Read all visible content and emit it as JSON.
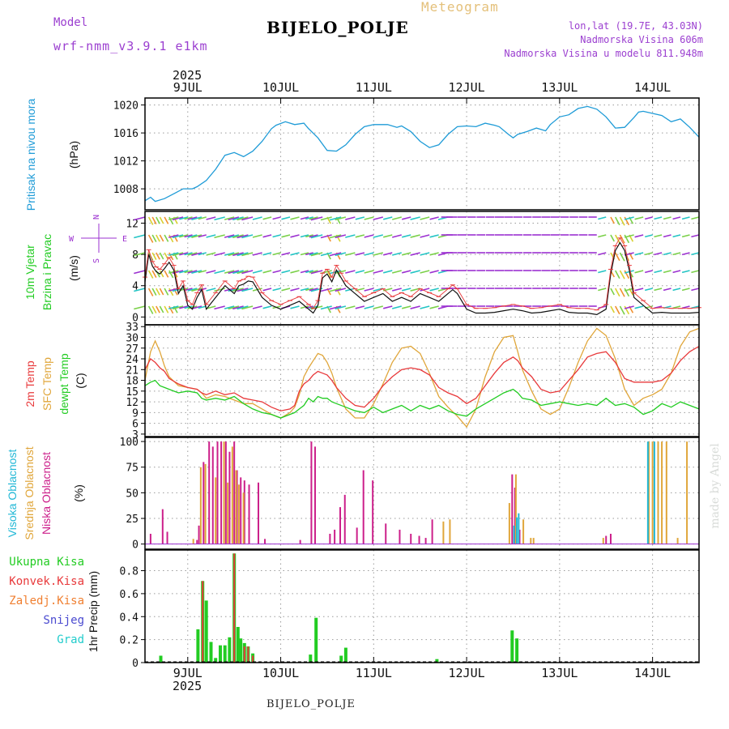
{
  "header": {
    "model_label": "Model",
    "model_name": "wrf-nmm_v3.9.1 e1km",
    "meteogram_label": "Meteogram",
    "station": "BIJELO_POLJE",
    "lonlat": "lon,lat (19.7E, 43.03N)",
    "elevation": "Nadmorska Visina 606m",
    "model_elevation": "Nadmorska Visina u modelu 811.948m",
    "year_top": "2025",
    "year_bottom": "2025",
    "footer_station": "BIJELO_POLJE",
    "watermark": "made by Angel"
  },
  "colors": {
    "pressure": "#1e9bd7",
    "t2m": "#e8393b",
    "sfc": "#e0a63a",
    "dewpt": "#22cc22",
    "high_cloud": "#22b8d6",
    "mid_cloud": "#e0a63a",
    "low_cloud": "#cc1f8a",
    "total_precip": "#22cc22",
    "conv_precip": "#e8393b",
    "frz_precip": "#f07f30",
    "snow": "#4a4ad0",
    "hail": "#22cccc",
    "wind_barb": "#9b30d0"
  },
  "chart_data": [
    {
      "type": "line",
      "panel": "pressure",
      "ylabel_lines": [
        "Pritisak na nivou mora",
        "(hPa)"
      ],
      "ylim": [
        1005,
        1021
      ],
      "yticks": [
        1008,
        1012,
        1016,
        1020
      ],
      "grid": true,
      "x_day_start": 8.54,
      "x_day_end": 14.5,
      "date_ticks": [
        "9JUL",
        "10JUL",
        "11JUL",
        "12JUL",
        "13JUL",
        "14JUL"
      ],
      "series": [
        {
          "name": "",
          "x": [
            8.54,
            8.6,
            8.65,
            8.75,
            8.85,
            8.95,
            9.05,
            9.1,
            9.2,
            9.3,
            9.4,
            9.5,
            9.6,
            9.7,
            9.8,
            9.9,
            9.95,
            10.05,
            10.15,
            10.25,
            10.3,
            10.4,
            10.5,
            10.6,
            10.7,
            10.8,
            10.9,
            11.0,
            11.05,
            11.15,
            11.25,
            11.3,
            11.4,
            11.5,
            11.6,
            11.7,
            11.8,
            11.9,
            12.0,
            12.1,
            12.2,
            12.3,
            12.35,
            12.45,
            12.5,
            12.55,
            12.65,
            12.75,
            12.85,
            12.9,
            13.0,
            13.1,
            13.2,
            13.3,
            13.4,
            13.5,
            13.6,
            13.7,
            13.8,
            13.85,
            13.9,
            14.0,
            14.1,
            14.2,
            14.3,
            14.4,
            14.5
          ],
          "values": [
            1006.3,
            1006.8,
            1006.2,
            1006.6,
            1007.3,
            1008.0,
            1008.0,
            1008.3,
            1009.2,
            1010.8,
            1012.8,
            1013.2,
            1012.6,
            1013.4,
            1014.8,
            1016.6,
            1017.1,
            1017.6,
            1017.2,
            1017.4,
            1016.6,
            1015.3,
            1013.5,
            1013.4,
            1014.3,
            1015.8,
            1016.9,
            1017.2,
            1017.2,
            1017.2,
            1016.8,
            1017.0,
            1016.2,
            1014.8,
            1013.9,
            1014.3,
            1015.8,
            1016.9,
            1017.0,
            1016.9,
            1017.4,
            1017.1,
            1016.9,
            1015.8,
            1015.3,
            1015.8,
            1016.2,
            1016.7,
            1016.3,
            1017.2,
            1018.3,
            1018.6,
            1019.5,
            1019.8,
            1019.4,
            1018.3,
            1016.7,
            1016.8,
            1018.2,
            1019.0,
            1019.1,
            1018.8,
            1018.5,
            1017.6,
            1018.0,
            1016.8,
            1015.4
          ]
        }
      ]
    },
    {
      "type": "line",
      "panel": "wind",
      "ylabel_lines": [
        "10m Vjetar",
        "Brzina i Pravac",
        "(m/s)"
      ],
      "compass": {
        "n": "N",
        "s": "S",
        "w": "W",
        "e": "E"
      },
      "ylim": [
        -1,
        13.5
      ],
      "yticks": [
        0,
        4,
        8,
        12
      ],
      "grid": true,
      "series": [
        {
          "name": "",
          "x": [
            8.54,
            8.58,
            8.62,
            8.66,
            8.7,
            8.75,
            8.8,
            8.85,
            8.9,
            8.95,
            9.0,
            9.05,
            9.1,
            9.15,
            9.2,
            9.3,
            9.4,
            9.5,
            9.55,
            9.6,
            9.65,
            9.7,
            9.8,
            9.9,
            10.0,
            10.1,
            10.2,
            10.3,
            10.35,
            10.4,
            10.45,
            10.5,
            10.55,
            10.6,
            10.65,
            10.7,
            10.8,
            10.9,
            11.0,
            11.1,
            11.2,
            11.3,
            11.4,
            11.5,
            11.6,
            11.7,
            11.8,
            11.85,
            11.9,
            12.0,
            12.1,
            12.2,
            12.3,
            12.4,
            12.5,
            12.6,
            12.7,
            12.8,
            12.9,
            13.0,
            13.1,
            13.2,
            13.3,
            13.4,
            13.5,
            13.55,
            13.6,
            13.65,
            13.7,
            13.75,
            13.8,
            13.9,
            14.0,
            14.1,
            14.2,
            14.3,
            14.4,
            14.5
          ],
          "values": [
            4.5,
            8.0,
            6.5,
            5.8,
            5.5,
            6.2,
            7.0,
            6.0,
            3.0,
            4.0,
            1.5,
            1.0,
            2.5,
            3.5,
            1.0,
            2.5,
            4.0,
            3.0,
            4.0,
            4.2,
            4.6,
            4.5,
            2.5,
            1.5,
            1.0,
            1.5,
            2.0,
            1.0,
            0.5,
            1.5,
            5.0,
            5.5,
            4.5,
            6.0,
            5.0,
            4.0,
            3.0,
            2.0,
            2.5,
            3.0,
            2.0,
            2.5,
            2.0,
            3.0,
            2.5,
            2.0,
            3.0,
            3.5,
            3.0,
            1.0,
            0.5,
            0.5,
            0.6,
            0.8,
            1.0,
            0.8,
            0.5,
            0.6,
            0.8,
            1.0,
            0.6,
            0.5,
            0.5,
            0.3,
            1.0,
            5.5,
            8.5,
            9.5,
            8.5,
            6.0,
            2.5,
            1.5,
            0.5,
            0.6,
            0.5,
            0.5,
            0.5,
            0.6
          ]
        }
      ]
    },
    {
      "type": "line",
      "panel": "temperature",
      "ylabel_lines": [
        "2m Temp",
        "SFC Temp",
        "dewpt Temp",
        "(C)"
      ],
      "ylim": [
        2.3,
        33.5
      ],
      "yticks": [
        3,
        6,
        9,
        12,
        15,
        18,
        21,
        24,
        27,
        30,
        33
      ],
      "grid": true,
      "x": [
        8.54,
        8.6,
        8.65,
        8.7,
        8.75,
        8.8,
        8.9,
        9.0,
        9.1,
        9.15,
        9.2,
        9.3,
        9.4,
        9.5,
        9.6,
        9.7,
        9.8,
        9.9,
        10.0,
        10.1,
        10.15,
        10.2,
        10.25,
        10.3,
        10.35,
        10.4,
        10.45,
        10.5,
        10.55,
        10.6,
        10.7,
        10.8,
        10.9,
        11.0,
        11.1,
        11.2,
        11.3,
        11.4,
        11.5,
        11.6,
        11.7,
        11.8,
        11.9,
        12.0,
        12.1,
        12.2,
        12.3,
        12.4,
        12.5,
        12.55,
        12.6,
        12.7,
        12.8,
        12.9,
        13.0,
        13.1,
        13.2,
        13.3,
        13.4,
        13.5,
        13.6,
        13.7,
        13.8,
        13.9,
        14.0,
        14.1,
        14.2,
        14.3,
        14.4,
        14.5
      ],
      "series": [
        {
          "name": "2m Temp",
          "values": [
            21.0,
            24.0,
            23.0,
            21.5,
            20.5,
            18.5,
            17.0,
            16.0,
            15.5,
            14.5,
            14.0,
            15.0,
            14.0,
            14.5,
            13.0,
            12.5,
            12.0,
            10.5,
            9.5,
            10.0,
            11.0,
            15.0,
            17.0,
            18.0,
            19.5,
            20.5,
            20.0,
            19.5,
            18.0,
            16.0,
            13.0,
            11.0,
            10.5,
            13.0,
            16.5,
            19.0,
            21.0,
            21.5,
            21.0,
            19.5,
            16.0,
            14.5,
            13.5,
            11.5,
            13.0,
            16.5,
            20.0,
            23.0,
            24.5,
            23.5,
            21.5,
            19.0,
            15.5,
            14.5,
            15.0,
            18.0,
            21.0,
            24.5,
            25.5,
            26.0,
            23.0,
            18.5,
            17.5,
            17.5,
            17.5,
            18.0,
            20.0,
            23.5,
            26.0,
            27.5
          ]
        },
        {
          "name": "SFC Temp",
          "values": [
            18.0,
            26.0,
            29.0,
            26.0,
            22.0,
            19.0,
            16.5,
            16.0,
            15.5,
            14.5,
            13.0,
            14.0,
            13.5,
            12.5,
            11.5,
            11.5,
            10.0,
            8.5,
            7.5,
            9.0,
            10.5,
            14.0,
            19.0,
            21.5,
            23.5,
            25.5,
            25.0,
            23.0,
            20.0,
            16.0,
            10.0,
            7.5,
            7.5,
            11.5,
            17.0,
            23.0,
            27.0,
            27.5,
            25.5,
            20.0,
            13.5,
            10.5,
            8.0,
            5.0,
            10.0,
            19.0,
            26.0,
            30.0,
            30.5,
            26.0,
            21.0,
            15.0,
            10.0,
            8.5,
            10.0,
            16.0,
            23.0,
            29.0,
            32.5,
            30.5,
            24.0,
            15.5,
            11.0,
            13.0,
            14.0,
            15.5,
            20.0,
            27.5,
            31.5,
            32.5
          ]
        },
        {
          "name": "dewpt Temp",
          "values": [
            16.5,
            17.5,
            18.0,
            16.5,
            16.0,
            15.5,
            14.5,
            15.0,
            14.5,
            13.0,
            12.5,
            13.0,
            12.5,
            13.5,
            11.5,
            10.0,
            9.0,
            8.5,
            7.5,
            8.5,
            9.0,
            10.0,
            11.0,
            13.0,
            12.0,
            13.5,
            13.0,
            13.0,
            12.0,
            11.5,
            10.5,
            9.5,
            9.0,
            10.5,
            9.0,
            10.0,
            11.0,
            9.5,
            11.0,
            10.0,
            11.0,
            9.5,
            8.5,
            8.0,
            10.0,
            11.5,
            13.0,
            14.5,
            15.5,
            14.5,
            13.0,
            12.5,
            11.0,
            11.5,
            12.0,
            11.5,
            11.0,
            11.5,
            11.0,
            13.0,
            11.0,
            11.5,
            10.5,
            8.5,
            9.5,
            11.5,
            10.5,
            12.0,
            11.0,
            10.0
          ]
        }
      ]
    },
    {
      "type": "bar",
      "panel": "clouds",
      "ylabel_lines": [
        "Visoka Oblacnost",
        "Srednja Oblacnost",
        "Niska Oblacnost",
        "(%)"
      ],
      "ylim": [
        -5,
        104
      ],
      "yticks": [
        0,
        25,
        50,
        75,
        100
      ],
      "grid": true,
      "series": [
        {
          "name": "Niska Oblacnost",
          "x": [
            8.6,
            8.73,
            8.78,
            9.1,
            9.12,
            9.17,
            9.23,
            9.27,
            9.32,
            9.36,
            9.41,
            9.45,
            9.5,
            9.53,
            9.57,
            9.61,
            9.66,
            9.76,
            9.83,
            10.21,
            10.33,
            10.37,
            10.53,
            10.58,
            10.64,
            10.69,
            10.82,
            10.89,
            10.99,
            11.13,
            11.28,
            11.4,
            11.49,
            11.56,
            11.63,
            12.49,
            12.52,
            12.57,
            13.5,
            13.55
          ],
          "values": [
            10,
            34,
            12,
            4,
            18,
            80,
            100,
            95,
            100,
            100,
            100,
            90,
            100,
            72,
            65,
            62,
            58,
            60,
            5,
            4,
            100,
            95,
            10,
            14,
            36,
            48,
            16,
            72,
            62,
            20,
            14,
            10,
            8,
            6,
            24,
            68,
            55,
            14,
            8,
            10
          ]
        },
        {
          "name": "Srednja Oblacnost",
          "x": [
            9.06,
            9.14,
            9.19,
            9.3,
            9.39,
            9.43,
            9.48,
            9.52,
            9.55,
            9.6,
            11.75,
            11.82,
            12.46,
            12.53,
            12.61,
            12.69,
            12.72,
            13.47,
            13.96,
            14.0,
            14.06,
            14.1,
            14.15,
            14.27,
            14.37
          ],
          "values": [
            5,
            75,
            78,
            65,
            100,
            60,
            95,
            72,
            58,
            50,
            22,
            24,
            40,
            68,
            24,
            6,
            6,
            6,
            100,
            100,
            100,
            100,
            100,
            6,
            100
          ]
        },
        {
          "name": "Visoka Oblacnost",
          "x": [
            12.51,
            12.54,
            12.56,
            13.95,
            14.02
          ],
          "values": [
            18,
            26,
            30,
            100,
            100
          ]
        }
      ]
    },
    {
      "type": "bar",
      "panel": "precipitation",
      "ylabel_lines": [
        "1hr Precip (mm)"
      ],
      "legend": [
        "Ukupna Kisa",
        "Konvek.Kisa",
        "Zaledj.Kisa",
        "Snijeg",
        "Grad"
      ],
      "ylim": [
        0,
        0.98
      ],
      "yticks": [
        0,
        0.2,
        0.4,
        0.6,
        0.8
      ],
      "grid": true,
      "series": [
        {
          "name": "Ukupna Kisa",
          "x": [
            8.71,
            9.11,
            9.16,
            9.2,
            9.25,
            9.3,
            9.35,
            9.4,
            9.45,
            9.5,
            9.54,
            9.57,
            9.61,
            9.65,
            9.7,
            10.32,
            10.38,
            10.65,
            10.7,
            11.68,
            12.49,
            12.54
          ],
          "values": [
            0.06,
            0.29,
            0.71,
            0.54,
            0.18,
            0.04,
            0.15,
            0.15,
            0.22,
            0.95,
            0.31,
            0.21,
            0.17,
            0.14,
            0.08,
            0.07,
            0.39,
            0.06,
            0.13,
            0.03,
            0.28,
            0.21
          ]
        },
        {
          "name": "Konvek.Kisa",
          "x": [
            9.16,
            9.5,
            9.61,
            9.65,
            9.7
          ],
          "values": [
            0.71,
            0.95,
            0.14,
            0.14,
            0.06
          ]
        }
      ]
    }
  ]
}
